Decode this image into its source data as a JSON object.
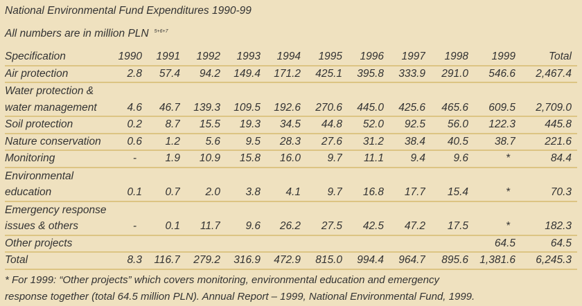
{
  "title": "National Environmental Fund Expenditures 1990-99",
  "subtitle": "All numbers are in million PLN",
  "subtitle_note": "5+6+7",
  "columns": [
    "Specification",
    "1990",
    "1991",
    "1992",
    "1993",
    "1994",
    "1995",
    "1996",
    "1997",
    "1998",
    "1999",
    "Total"
  ],
  "rows": [
    {
      "label": "Air protection",
      "values": [
        "2.8",
        "57.4",
        "94.2",
        "149.4",
        "171.2",
        "425.1",
        "395.8",
        "333.9",
        "291.0",
        "546.6",
        "2,467.4"
      ]
    },
    {
      "label": "Water protection & water management",
      "values": [
        "4.6",
        "46.7",
        "139.3",
        "109.5",
        "192.6",
        "270.6",
        "445.0",
        "425.6",
        "465.6",
        "609.5",
        "2,709.0"
      ]
    },
    {
      "label": "Soil protection",
      "values": [
        "0.2",
        "8.7",
        "15.5",
        "19.3",
        "34.5",
        "44.8",
        "52.0",
        "92.5",
        "56.0",
        "122.3",
        "445.8"
      ]
    },
    {
      "label": "Nature conservation",
      "values": [
        "0.6",
        "1.2",
        "5.6",
        "9.5",
        "28.3",
        "27.6",
        "31.2",
        "38.4",
        "40.5",
        "38.7",
        "221.6"
      ]
    },
    {
      "label": "Monitoring",
      "values": [
        "-",
        "1.9",
        "10.9",
        "15.8",
        "16.0",
        "9.7",
        "11.1",
        "9.4",
        "9.6",
        "*",
        "84.4"
      ]
    },
    {
      "label": "Environmental education",
      "values": [
        "0.1",
        "0.7",
        "2.0",
        "3.8",
        "4.1",
        "9.7",
        "16.8",
        "17.7",
        "15.4",
        "*",
        "70.3"
      ]
    },
    {
      "label": "Emergency response issues & others",
      "values": [
        "-",
        "0.1",
        "11.7",
        "9.6",
        "26.2",
        "27.5",
        "42.5",
        "47.2",
        "17.5",
        "*",
        "182.3"
      ]
    },
    {
      "label": "Other projects",
      "values": [
        "",
        "",
        "",
        "",
        "",
        "",
        "",
        "",
        "",
        "64.5",
        "64.5"
      ]
    },
    {
      "label": "Total",
      "values": [
        "8.3",
        "116.7",
        "279.2",
        "316.9",
        "472.9",
        "815.0",
        "994.4",
        "964.7",
        "895.6",
        "1,381.6",
        "6,245.3"
      ]
    }
  ],
  "footnote_1": "* For 1999: “Other projects” which covers monitoring, environmental education and emergency",
  "footnote_2": "response together (total 64.5 million PLN).  Annual Report – 1999, National Environmental Fund, 1999.",
  "colors": {
    "background": "#efe1bf",
    "rule": "#dcc483",
    "text": "#333333"
  }
}
